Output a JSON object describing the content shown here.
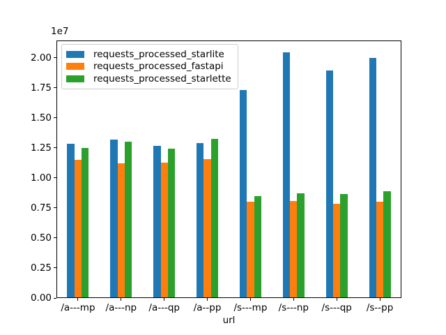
{
  "figure": {
    "background": "#ffffff",
    "text_color": "#000000",
    "legend_border_color": "#cccccc"
  },
  "chart_data": {
    "type": "bar",
    "title": "",
    "xlabel": "url",
    "ylabel": "",
    "offset_text": "1e7",
    "grid": false,
    "legend_position": "upper left",
    "categories": [
      "/a---mp",
      "/a---np",
      "/a---qp",
      "/a--pp",
      "/s---mp",
      "/s---np",
      "/s---qp",
      "/s--pp"
    ],
    "series": [
      {
        "name": "requests_processed_starlite",
        "color": "#1f77b4",
        "values": [
          12850000,
          13200000,
          12700000,
          12900000,
          17300000,
          20450000,
          18950000,
          20000000
        ]
      },
      {
        "name": "requests_processed_fastapi",
        "color": "#ff7f0e",
        "values": [
          11500000,
          11200000,
          11250000,
          11550000,
          8000000,
          8100000,
          7850000,
          8050000
        ]
      },
      {
        "name": "requests_processed_starlette",
        "color": "#2ca02c",
        "values": [
          12500000,
          13000000,
          12450000,
          13250000,
          8500000,
          8700000,
          8650000,
          8900000
        ]
      }
    ],
    "ylim": [
      0,
      21450000
    ],
    "yticks": [
      0,
      2500000,
      5000000,
      7500000,
      10000000,
      12500000,
      15000000,
      17500000,
      20000000
    ],
    "ytick_labels": [
      "0.00",
      "0.25",
      "0.50",
      "0.75",
      "1.00",
      "1.25",
      "1.50",
      "1.75",
      "2.00"
    ]
  }
}
